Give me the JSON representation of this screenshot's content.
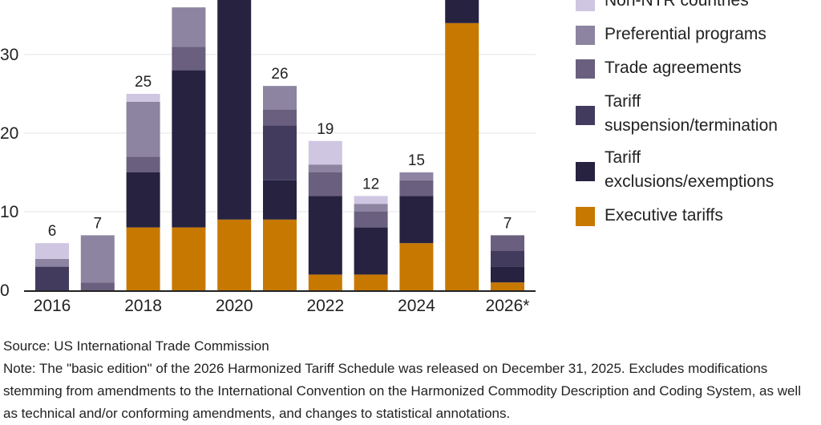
{
  "chart_data": {
    "type": "bar",
    "stacked": true,
    "categories": [
      "2016",
      "2017",
      "2018",
      "2019",
      "2020",
      "2021",
      "2022",
      "2023",
      "2024",
      "2025",
      "2026*"
    ],
    "x_tick_labels": [
      "2016",
      "2018",
      "2020",
      "2022",
      "2024",
      "2026*"
    ],
    "ylim": [
      0,
      38
    ],
    "yticks": [
      0,
      10,
      20,
      30
    ],
    "grid": true,
    "legend_position": "right",
    "series": [
      {
        "name": "Executive tariffs",
        "color": "#c77800",
        "values": [
          0,
          0,
          8,
          8,
          9,
          9,
          2,
          2,
          6,
          34,
          1
        ]
      },
      {
        "name": "Tariff exclusions/exemptions",
        "color": "#262240",
        "values": [
          0,
          0,
          7,
          20,
          30,
          5,
          10,
          6,
          6,
          4,
          2
        ]
      },
      {
        "name": "Tariff suspension/termination",
        "color": "#433b5e",
        "values": [
          3,
          0,
          0,
          0,
          0,
          7,
          0,
          0,
          0,
          0,
          2
        ]
      },
      {
        "name": "Trade agreements",
        "color": "#6a5f7e",
        "values": [
          0,
          1,
          2,
          3,
          0,
          2,
          3,
          2,
          2,
          0,
          2
        ]
      },
      {
        "name": "Preferential programs",
        "color": "#8c84a0",
        "values": [
          1,
          6,
          7,
          5,
          0,
          3,
          1,
          1,
          1,
          0,
          0
        ]
      },
      {
        "name": "Non-NTR countries",
        "color": "#cfc6e2",
        "values": [
          2,
          0,
          1,
          0,
          0,
          0,
          3,
          1,
          0,
          0,
          0
        ]
      }
    ],
    "totals": [
      6,
      7,
      25,
      null,
      null,
      26,
      19,
      12,
      15,
      null,
      7
    ]
  },
  "legend": {
    "items": [
      {
        "lines": [
          "Non-NTR countries"
        ],
        "color": "#cfc6e2"
      },
      {
        "lines": [
          "Preferential programs"
        ],
        "color": "#8c84a0"
      },
      {
        "lines": [
          "Trade agreements"
        ],
        "color": "#6a5f7e"
      },
      {
        "lines": [
          "Tariff",
          "suspension/termination"
        ],
        "color": "#433b5e"
      },
      {
        "lines": [
          "Tariff",
          "exclusions/exemptions"
        ],
        "color": "#262240"
      },
      {
        "lines": [
          "Executive tariffs"
        ],
        "color": "#c77800"
      }
    ]
  },
  "footer": {
    "source": "Source: US International Trade Commission",
    "note": "Note: The \"basic edition\" of the 2026 Harmonized Tariff Schedule was released on December 31, 2025. Excludes modifications stemming from amendments to the International Convention on the Harmonized Commodity Description and Coding System, as well as technical and/or conforming amendments, and changes to statistical annotations."
  }
}
